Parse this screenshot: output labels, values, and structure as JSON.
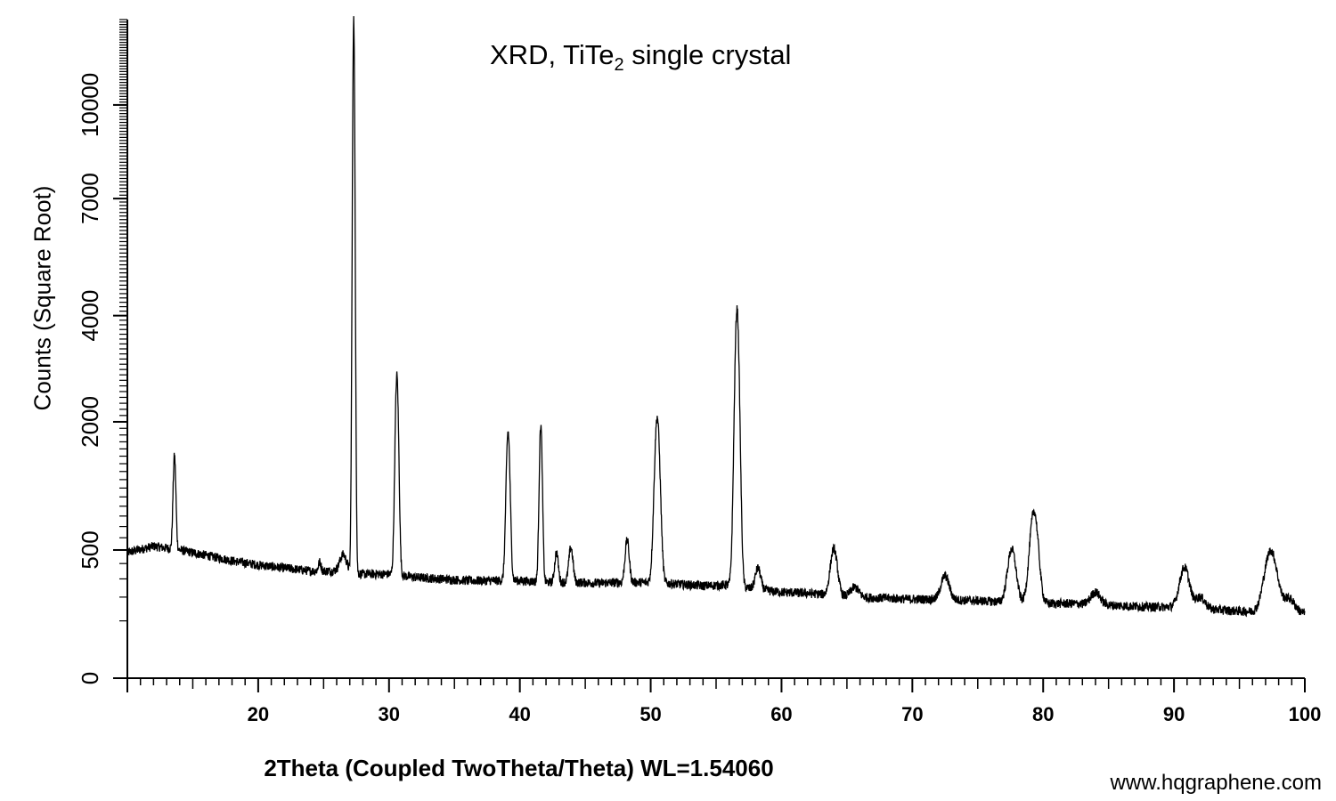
{
  "chart_data": {
    "type": "line",
    "title_main": "XRD, TiTe",
    "title_sub": "2",
    "title_rest": " single crystal",
    "xlabel": "2Theta (Coupled TwoTheta/Theta) WL=1.54060",
    "ylabel": "Counts (Square Root)",
    "y_scale": "sqrt",
    "xlim": [
      10,
      100
    ],
    "ylim": [
      0,
      13200
    ],
    "x_ticks": [
      20,
      30,
      40,
      50,
      60,
      70,
      80,
      90,
      100
    ],
    "y_ticks": [
      0,
      500,
      2000,
      4000,
      7000,
      10000
    ],
    "grid": false,
    "line_color": "#000000",
    "background": "#9fffff",
    "baseline": [
      [
        10,
        480
      ],
      [
        12,
        530
      ],
      [
        14,
        500
      ],
      [
        16,
        460
      ],
      [
        18,
        420
      ],
      [
        20,
        390
      ],
      [
        22,
        370
      ],
      [
        24,
        350
      ],
      [
        26,
        350
      ],
      [
        28,
        330
      ],
      [
        30,
        330
      ],
      [
        32,
        310
      ],
      [
        34,
        300
      ],
      [
        36,
        290
      ],
      [
        38,
        290
      ],
      [
        40,
        290
      ],
      [
        42,
        280
      ],
      [
        44,
        280
      ],
      [
        46,
        275
      ],
      [
        48,
        280
      ],
      [
        50,
        280
      ],
      [
        52,
        270
      ],
      [
        54,
        260
      ],
      [
        56,
        265
      ],
      [
        58,
        240
      ],
      [
        60,
        225
      ],
      [
        62,
        220
      ],
      [
        64,
        210
      ],
      [
        66,
        200
      ],
      [
        68,
        195
      ],
      [
        70,
        190
      ],
      [
        72,
        190
      ],
      [
        74,
        185
      ],
      [
        76,
        180
      ],
      [
        78,
        175
      ],
      [
        80,
        170
      ],
      [
        82,
        170
      ],
      [
        84,
        165
      ],
      [
        86,
        160
      ],
      [
        88,
        155
      ],
      [
        90,
        155
      ],
      [
        92,
        150
      ],
      [
        94,
        140
      ],
      [
        96,
        135
      ],
      [
        98,
        135
      ],
      [
        100,
        130
      ]
    ],
    "peaks": [
      {
        "x": 13.6,
        "height": 1000,
        "width": 0.1
      },
      {
        "x": 24.7,
        "height": 60,
        "width": 0.1
      },
      {
        "x": 26.5,
        "height": 120,
        "width": 0.25
      },
      {
        "x": 27.3,
        "height": 12900,
        "width": 0.09
      },
      {
        "x": 30.6,
        "height": 2470,
        "width": 0.13
      },
      {
        "x": 39.1,
        "height": 1560,
        "width": 0.14
      },
      {
        "x": 41.6,
        "height": 1670,
        "width": 0.11
      },
      {
        "x": 42.8,
        "height": 200,
        "width": 0.13
      },
      {
        "x": 43.9,
        "height": 240,
        "width": 0.15
      },
      {
        "x": 48.2,
        "height": 300,
        "width": 0.15
      },
      {
        "x": 50.5,
        "height": 1800,
        "width": 0.2
      },
      {
        "x": 56.6,
        "height": 3900,
        "width": 0.18
      },
      {
        "x": 58.2,
        "height": 130,
        "width": 0.2
      },
      {
        "x": 64.0,
        "height": 300,
        "width": 0.25
      },
      {
        "x": 65.6,
        "height": 50,
        "width": 0.3
      },
      {
        "x": 72.5,
        "height": 130,
        "width": 0.3
      },
      {
        "x": 77.6,
        "height": 330,
        "width": 0.3
      },
      {
        "x": 79.3,
        "height": 680,
        "width": 0.3
      },
      {
        "x": 84.0,
        "height": 60,
        "width": 0.35
      },
      {
        "x": 90.8,
        "height": 220,
        "width": 0.35
      },
      {
        "x": 92.0,
        "height": 50,
        "width": 0.35
      },
      {
        "x": 97.4,
        "height": 360,
        "width": 0.45
      },
      {
        "x": 98.8,
        "height": 60,
        "width": 0.4
      }
    ]
  },
  "watermark": "www.hqgraphene.com"
}
